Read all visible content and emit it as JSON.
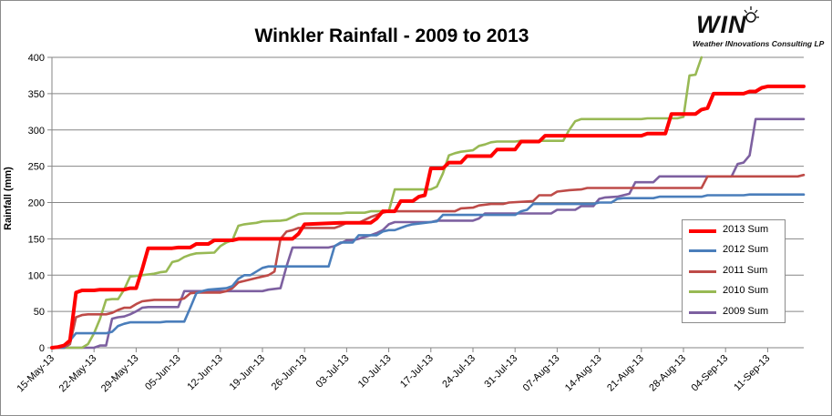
{
  "chart_data": {
    "type": "line",
    "title": "Winkler Rainfall - 2009 to 2013",
    "xlabel": "",
    "ylabel": "Rainfall (mm)",
    "ylim": [
      0,
      400
    ],
    "yticks": [
      0,
      50,
      100,
      150,
      200,
      250,
      300,
      350,
      400
    ],
    "xlim": [
      "15-May",
      "17-Sep"
    ],
    "xticks": [
      "15-May-13",
      "22-May-13",
      "29-May-13",
      "05-Jun-13",
      "12-Jun-13",
      "19-Jun-13",
      "26-Jun-13",
      "03-Jul-13",
      "10-Jul-13",
      "17-Jul-13",
      "24-Jul-13",
      "31-Jul-13",
      "07-Aug-13",
      "14-Aug-13",
      "21-Aug-13",
      "28-Aug-13",
      "04-Sep-13",
      "11-Sep-13"
    ],
    "grid": "horizontal",
    "legend_position": "right",
    "series": [
      {
        "name": "2013 Sum",
        "color": "#ff0000",
        "width": 4,
        "points": [
          [
            "15-May",
            0
          ],
          [
            "16-May",
            1
          ],
          [
            "17-May",
            3
          ],
          [
            "18-May",
            10
          ],
          [
            "19-May",
            76
          ],
          [
            "20-May",
            79
          ],
          [
            "22-May",
            79
          ],
          [
            "23-May",
            80
          ],
          [
            "27-May",
            80
          ],
          [
            "28-May",
            82
          ],
          [
            "29-May",
            82
          ],
          [
            "30-May",
            108
          ],
          [
            "31-May",
            137
          ],
          [
            "04-Jun",
            137
          ],
          [
            "05-Jun",
            138
          ],
          [
            "07-Jun",
            138
          ],
          [
            "08-Jun",
            143
          ],
          [
            "10-Jun",
            143
          ],
          [
            "11-Jun",
            148
          ],
          [
            "14-Jun",
            148
          ],
          [
            "15-Jun",
            150
          ],
          [
            "24-Jun",
            150
          ],
          [
            "25-Jun",
            157
          ],
          [
            "26-Jun",
            170
          ],
          [
            "02-Jul",
            172
          ],
          [
            "07-Jul",
            172
          ],
          [
            "08-Jul",
            178
          ],
          [
            "09-Jul",
            188
          ],
          [
            "11-Jul",
            188
          ],
          [
            "12-Jul",
            202
          ],
          [
            "14-Jul",
            202
          ],
          [
            "15-Jul",
            208
          ],
          [
            "16-Jul",
            210
          ],
          [
            "17-Jul",
            247
          ],
          [
            "19-Jul",
            247
          ],
          [
            "20-Jul",
            255
          ],
          [
            "22-Jul",
            255
          ],
          [
            "23-Jul",
            264
          ],
          [
            "27-Jul",
            264
          ],
          [
            "28-Jul",
            273
          ],
          [
            "31-Jul",
            273
          ],
          [
            "01-Aug",
            284
          ],
          [
            "04-Aug",
            284
          ],
          [
            "05-Aug",
            292
          ],
          [
            "21-Aug",
            292
          ],
          [
            "22-Aug",
            295
          ],
          [
            "25-Aug",
            295
          ],
          [
            "26-Aug",
            322
          ],
          [
            "30-Aug",
            322
          ],
          [
            "31-Aug",
            328
          ],
          [
            "01-Sep",
            330
          ],
          [
            "02-Sep",
            350
          ],
          [
            "07-Sep",
            350
          ],
          [
            "08-Sep",
            353
          ],
          [
            "09-Sep",
            353
          ],
          [
            "10-Sep",
            358
          ],
          [
            "11-Sep",
            360
          ],
          [
            "17-Sep",
            360
          ]
        ]
      },
      {
        "name": "2012 Sum",
        "color": "#4a7ebb",
        "width": 2.6,
        "points": [
          [
            "15-May",
            0
          ],
          [
            "17-May",
            0
          ],
          [
            "18-May",
            10
          ],
          [
            "19-May",
            20
          ],
          [
            "24-May",
            20
          ],
          [
            "25-May",
            22
          ],
          [
            "26-May",
            30
          ],
          [
            "27-May",
            33
          ],
          [
            "28-May",
            35
          ],
          [
            "02-Jun",
            35
          ],
          [
            "03-Jun",
            36
          ],
          [
            "06-Jun",
            36
          ],
          [
            "07-Jun",
            55
          ],
          [
            "08-Jun",
            75
          ],
          [
            "09-Jun",
            78
          ],
          [
            "10-Jun",
            80
          ],
          [
            "13-Jun",
            82
          ],
          [
            "14-Jun",
            85
          ],
          [
            "15-Jun",
            95
          ],
          [
            "16-Jun",
            100
          ],
          [
            "17-Jun",
            100
          ],
          [
            "18-Jun",
            105
          ],
          [
            "19-Jun",
            110
          ],
          [
            "20-Jun",
            112
          ],
          [
            "26-Jun",
            112
          ],
          [
            "27-Jun",
            112
          ],
          [
            "30-Jun",
            112
          ],
          [
            "01-Jul",
            140
          ],
          [
            "02-Jul",
            145
          ],
          [
            "04-Jul",
            145
          ],
          [
            "05-Jul",
            155
          ],
          [
            "08-Jul",
            155
          ],
          [
            "09-Jul",
            160
          ],
          [
            "10-Jul",
            162
          ],
          [
            "11-Jul",
            162
          ],
          [
            "12-Jul",
            165
          ],
          [
            "13-Jul",
            168
          ],
          [
            "14-Jul",
            170
          ],
          [
            "16-Jul",
            172
          ],
          [
            "18-Jul",
            174
          ],
          [
            "19-Jul",
            183
          ],
          [
            "31-Jul",
            183
          ],
          [
            "01-Aug",
            188
          ],
          [
            "02-Aug",
            190
          ],
          [
            "03-Aug",
            198
          ],
          [
            "13-Aug",
            198
          ],
          [
            "14-Aug",
            200
          ],
          [
            "16-Aug",
            200
          ],
          [
            "17-Aug",
            205
          ],
          [
            "18-Aug",
            206
          ],
          [
            "23-Aug",
            206
          ],
          [
            "24-Aug",
            208
          ],
          [
            "31-Aug",
            208
          ],
          [
            "01-Sep",
            210
          ],
          [
            "07-Sep",
            210
          ],
          [
            "08-Sep",
            211
          ],
          [
            "17-Sep",
            211
          ]
        ]
      },
      {
        "name": "2011 Sum",
        "color": "#be4b48",
        "width": 2.6,
        "points": [
          [
            "15-May",
            0
          ],
          [
            "16-May",
            0
          ],
          [
            "17-May",
            0
          ],
          [
            "18-May",
            5
          ],
          [
            "19-May",
            42
          ],
          [
            "20-May",
            45
          ],
          [
            "21-May",
            46
          ],
          [
            "24-May",
            46
          ],
          [
            "25-May",
            48
          ],
          [
            "26-May",
            52
          ],
          [
            "27-May",
            55
          ],
          [
            "28-May",
            55
          ],
          [
            "29-May",
            60
          ],
          [
            "30-May",
            64
          ],
          [
            "31-May",
            65
          ],
          [
            "01-Jun",
            66
          ],
          [
            "05-Jun",
            66
          ],
          [
            "06-Jun",
            68
          ],
          [
            "07-Jun",
            75
          ],
          [
            "08-Jun",
            76
          ],
          [
            "12-Jun",
            76
          ],
          [
            "13-Jun",
            78
          ],
          [
            "14-Jun",
            82
          ],
          [
            "15-Jun",
            90
          ],
          [
            "16-Jun",
            92
          ],
          [
            "17-Jun",
            94
          ],
          [
            "18-Jun",
            96
          ],
          [
            "19-Jun",
            98
          ],
          [
            "20-Jun",
            100
          ],
          [
            "21-Jun",
            105
          ],
          [
            "22-Jun",
            150
          ],
          [
            "23-Jun",
            160
          ],
          [
            "24-Jun",
            162
          ],
          [
            "25-Jun",
            165
          ],
          [
            "01-Jul",
            165
          ],
          [
            "02-Jul",
            168
          ],
          [
            "03-Jul",
            172
          ],
          [
            "05-Jul",
            172
          ],
          [
            "06-Jul",
            176
          ],
          [
            "07-Jul",
            180
          ],
          [
            "08-Jul",
            183
          ],
          [
            "09-Jul",
            186
          ],
          [
            "10-Jul",
            188
          ],
          [
            "21-Jul",
            188
          ],
          [
            "22-Jul",
            192
          ],
          [
            "24-Jul",
            193
          ],
          [
            "25-Jul",
            196
          ],
          [
            "27-Jul",
            198
          ],
          [
            "29-Jul",
            198
          ],
          [
            "30-Jul",
            200
          ],
          [
            "03-Aug",
            202
          ],
          [
            "04-Aug",
            210
          ],
          [
            "06-Aug",
            210
          ],
          [
            "07-Aug",
            215
          ],
          [
            "09-Aug",
            217
          ],
          [
            "11-Aug",
            218
          ],
          [
            "12-Aug",
            220
          ],
          [
            "31-Aug",
            220
          ],
          [
            "01-Sep",
            236
          ],
          [
            "16-Sep",
            236
          ],
          [
            "17-Sep",
            238
          ]
        ]
      },
      {
        "name": "2010 Sum",
        "color": "#98b954",
        "width": 2.6,
        "points": [
          [
            "15-May",
            0
          ],
          [
            "20-May",
            0
          ],
          [
            "21-May",
            5
          ],
          [
            "22-May",
            20
          ],
          [
            "23-May",
            40
          ],
          [
            "24-May",
            66
          ],
          [
            "25-May",
            67
          ],
          [
            "26-May",
            67
          ],
          [
            "27-May",
            80
          ],
          [
            "28-May",
            98
          ],
          [
            "30-May",
            100
          ],
          [
            "31-May",
            101
          ],
          [
            "01-Jun",
            102
          ],
          [
            "02-Jun",
            104
          ],
          [
            "03-Jun",
            105
          ],
          [
            "04-Jun",
            118
          ],
          [
            "05-Jun",
            120
          ],
          [
            "06-Jun",
            125
          ],
          [
            "07-Jun",
            128
          ],
          [
            "08-Jun",
            130
          ],
          [
            "11-Jun",
            131
          ],
          [
            "12-Jun",
            140
          ],
          [
            "13-Jun",
            145
          ],
          [
            "14-Jun",
            148
          ],
          [
            "15-Jun",
            168
          ],
          [
            "16-Jun",
            170
          ],
          [
            "17-Jun",
            171
          ],
          [
            "18-Jun",
            172
          ],
          [
            "19-Jun",
            174
          ],
          [
            "22-Jun",
            175
          ],
          [
            "23-Jun",
            176
          ],
          [
            "24-Jun",
            180
          ],
          [
            "25-Jun",
            184
          ],
          [
            "26-Jun",
            185
          ],
          [
            "02-Jul",
            185
          ],
          [
            "03-Jul",
            186
          ],
          [
            "06-Jul",
            186
          ],
          [
            "07-Jul",
            188
          ],
          [
            "10-Jul",
            188
          ],
          [
            "11-Jul",
            218
          ],
          [
            "16-Jul",
            218
          ],
          [
            "17-Jul",
            218
          ],
          [
            "18-Jul",
            222
          ],
          [
            "19-Jul",
            240
          ],
          [
            "20-Jul",
            265
          ],
          [
            "21-Jul",
            268
          ],
          [
            "22-Jul",
            270
          ],
          [
            "24-Jul",
            272
          ],
          [
            "25-Jul",
            278
          ],
          [
            "26-Jul",
            280
          ],
          [
            "27-Jul",
            283
          ],
          [
            "28-Jul",
            284
          ],
          [
            "31-Jul",
            284
          ],
          [
            "01-Aug",
            285
          ],
          [
            "08-Aug",
            285
          ],
          [
            "09-Aug",
            300
          ],
          [
            "10-Aug",
            312
          ],
          [
            "11-Aug",
            315
          ],
          [
            "21-Aug",
            315
          ],
          [
            "22-Aug",
            316
          ],
          [
            "27-Aug",
            316
          ],
          [
            "28-Aug",
            318
          ],
          [
            "29-Aug",
            375
          ],
          [
            "30-Aug",
            376
          ],
          [
            "31-Aug",
            400
          ]
        ]
      },
      {
        "name": "2009 Sum",
        "color": "#7d60a0",
        "width": 2.6,
        "points": [
          [
            "15-May",
            0
          ],
          [
            "22-May",
            0
          ],
          [
            "23-May",
            3
          ],
          [
            "24-May",
            3
          ],
          [
            "25-May",
            40
          ],
          [
            "26-May",
            42
          ],
          [
            "27-May",
            43
          ],
          [
            "28-May",
            46
          ],
          [
            "29-May",
            50
          ],
          [
            "30-May",
            55
          ],
          [
            "31-May",
            56
          ],
          [
            "05-Jun",
            56
          ],
          [
            "06-Jun",
            78
          ],
          [
            "15-Jun",
            78
          ],
          [
            "19-Jun",
            78
          ],
          [
            "20-Jun",
            80
          ],
          [
            "22-Jun",
            82
          ],
          [
            "23-Jun",
            112
          ],
          [
            "24-Jun",
            138
          ],
          [
            "30-Jun",
            138
          ],
          [
            "01-Jul",
            140
          ],
          [
            "03-Jul",
            148
          ],
          [
            "04-Jul",
            148
          ],
          [
            "05-Jul",
            150
          ],
          [
            "07-Jul",
            155
          ],
          [
            "08-Jul",
            158
          ],
          [
            "09-Jul",
            162
          ],
          [
            "10-Jul",
            170
          ],
          [
            "11-Jul",
            173
          ],
          [
            "17-Jul",
            173
          ],
          [
            "18-Jul",
            175
          ],
          [
            "24-Jul",
            175
          ],
          [
            "25-Jul",
            178
          ],
          [
            "26-Jul",
            185
          ],
          [
            "06-Aug",
            185
          ],
          [
            "07-Aug",
            190
          ],
          [
            "10-Aug",
            190
          ],
          [
            "11-Aug",
            195
          ],
          [
            "13-Aug",
            195
          ],
          [
            "14-Aug",
            205
          ],
          [
            "15-Aug",
            207
          ],
          [
            "17-Aug",
            208
          ],
          [
            "18-Aug",
            210
          ],
          [
            "19-Aug",
            212
          ],
          [
            "20-Aug",
            228
          ],
          [
            "23-Aug",
            228
          ],
          [
            "24-Aug",
            236
          ],
          [
            "05-Sep",
            236
          ],
          [
            "06-Sep",
            253
          ],
          [
            "07-Sep",
            255
          ],
          [
            "08-Sep",
            265
          ],
          [
            "09-Sep",
            315
          ],
          [
            "17-Sep",
            315
          ]
        ]
      }
    ]
  },
  "logo": {
    "word": "WIN",
    "subtitle": "Weather INnovations Consulting LP",
    "icon": "sun-icon"
  }
}
